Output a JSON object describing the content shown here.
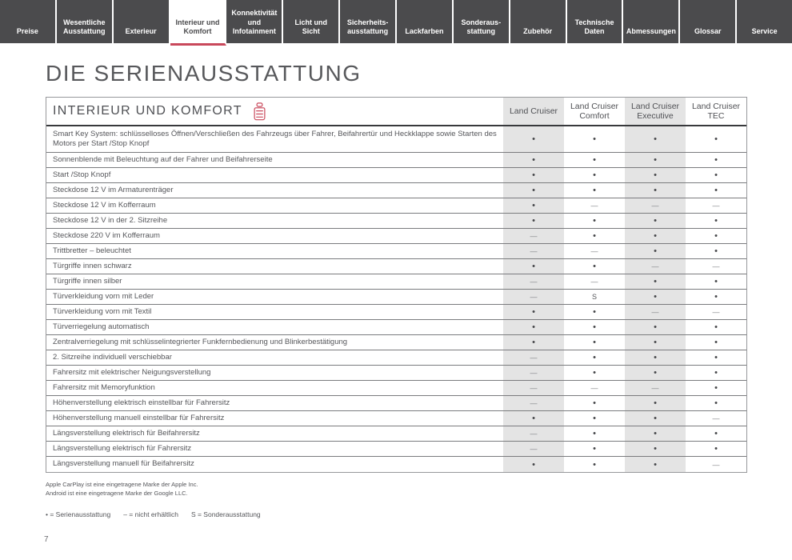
{
  "colors": {
    "accent_red": "#c9485b",
    "tab_bg": "#4b4b4d",
    "shaded_column": "#e4e4e4"
  },
  "tabs": [
    {
      "label": "Preise",
      "active": false
    },
    {
      "label": "Wesentliche Ausstattung",
      "active": false
    },
    {
      "label": "Exterieur",
      "active": false
    },
    {
      "label": "Interieur und Komfort",
      "active": true
    },
    {
      "label": "Konnektivität und Infotainment",
      "active": false
    },
    {
      "label": "Licht und Sicht",
      "active": false
    },
    {
      "label": "Sicherheits­ausstattung",
      "active": false
    },
    {
      "label": "Lackfarben",
      "active": false
    },
    {
      "label": "Sonderaus­stattung",
      "active": false
    },
    {
      "label": "Zubehör",
      "active": false
    },
    {
      "label": "Technische Daten",
      "active": false
    },
    {
      "label": "Abmessungen",
      "active": false
    },
    {
      "label": "Glossar",
      "active": false
    },
    {
      "label": "Service",
      "active": false
    }
  ],
  "page_title": "DIE SERIENAUSSTATTUNG",
  "table": {
    "section_title": "INTERIEUR UND KOMFORT",
    "section_icon": "car-seat-icon",
    "columns": [
      "Land Cruiser",
      "Land Cruiser Comfort",
      "Land Cruiser Executive",
      "Land Cruiser TEC"
    ],
    "rows": [
      {
        "feature": "Smart Key System: schlüsselloses Öffnen/Verschließen des Fahrzeugs über Fahrer, Beifahrertür und Heckklappe sowie Starten des Motors per Start /Stop Knopf",
        "values": [
          "•",
          "•",
          "•",
          "•"
        ]
      },
      {
        "feature": "Sonnenblende mit Beleuchtung auf der Fahrer und Beifahrerseite",
        "values": [
          "•",
          "•",
          "•",
          "•"
        ]
      },
      {
        "feature": "Start /Stop Knopf",
        "values": [
          "•",
          "•",
          "•",
          "•"
        ]
      },
      {
        "feature": "Steckdose 12 V im Armaturenträger",
        "values": [
          "•",
          "•",
          "•",
          "•"
        ]
      },
      {
        "feature": "Steckdose 12 V im Kofferraum",
        "values": [
          "•",
          "—",
          "—",
          "—"
        ]
      },
      {
        "feature": "Steckdose 12 V in der 2. Sitzreihe",
        "values": [
          "•",
          "•",
          "•",
          "•"
        ]
      },
      {
        "feature": "Steckdose 220 V im Kofferraum",
        "values": [
          "—",
          "•",
          "•",
          "•"
        ]
      },
      {
        "feature": "Trittbretter – beleuchtet",
        "values": [
          "—",
          "—",
          "•",
          "•"
        ]
      },
      {
        "feature": "Türgriffe innen schwarz",
        "values": [
          "•",
          "•",
          "—",
          "—"
        ]
      },
      {
        "feature": "Türgriffe innen silber",
        "values": [
          "—",
          "—",
          "•",
          "•"
        ]
      },
      {
        "feature": "Türverkleidung vorn mit Leder",
        "values": [
          "—",
          "S",
          "•",
          "•"
        ]
      },
      {
        "feature": "Türverkleidung vorn mit Textil",
        "values": [
          "•",
          "•",
          "—",
          "—"
        ]
      },
      {
        "feature": "Türverriegelung automatisch",
        "values": [
          "•",
          "•",
          "•",
          "•"
        ]
      },
      {
        "feature": "Zentralverriegelung mit schlüsselintegrierter Funkfernbedienung und Blinkerbestätigung",
        "values": [
          "•",
          "•",
          "•",
          "•"
        ]
      },
      {
        "feature": "2. Sitzreihe individuell verschiebbar",
        "values": [
          "—",
          "•",
          "•",
          "•"
        ]
      },
      {
        "feature": "Fahrersitz mit elektrischer Neigungsverstellung",
        "values": [
          "—",
          "•",
          "•",
          "•"
        ]
      },
      {
        "feature": "Fahrersitz mit Memoryfunktion",
        "values": [
          "—",
          "—",
          "—",
          "•"
        ]
      },
      {
        "feature": "Höhenverstellung elektrisch einstellbar für Fahrersitz",
        "values": [
          "—",
          "•",
          "•",
          "•"
        ]
      },
      {
        "feature": "Höhenverstellung manuell einstellbar für Fahrersitz",
        "values": [
          "•",
          "•",
          "•",
          "—"
        ]
      },
      {
        "feature": "Längsverstellung elektrisch für Beifahrersitz",
        "values": [
          "—",
          "•",
          "•",
          "•"
        ]
      },
      {
        "feature": "Längsverstellung elektrisch für Fahrersitz",
        "values": [
          "—",
          "•",
          "•",
          "•"
        ]
      },
      {
        "feature": "Längsverstellung manuell für Beifahrersitz",
        "values": [
          "•",
          "•",
          "•",
          "—"
        ]
      }
    ]
  },
  "footnotes": [
    "Apple CarPlay ist eine eingetragene Marke der Apple Inc.",
    "Android ist eine eingetragene Marke der Google LLC."
  ],
  "legend": [
    "• = Serienausstattung",
    "– = nicht erhältlich",
    "S = Sonderausstattung"
  ],
  "page_number": "7"
}
